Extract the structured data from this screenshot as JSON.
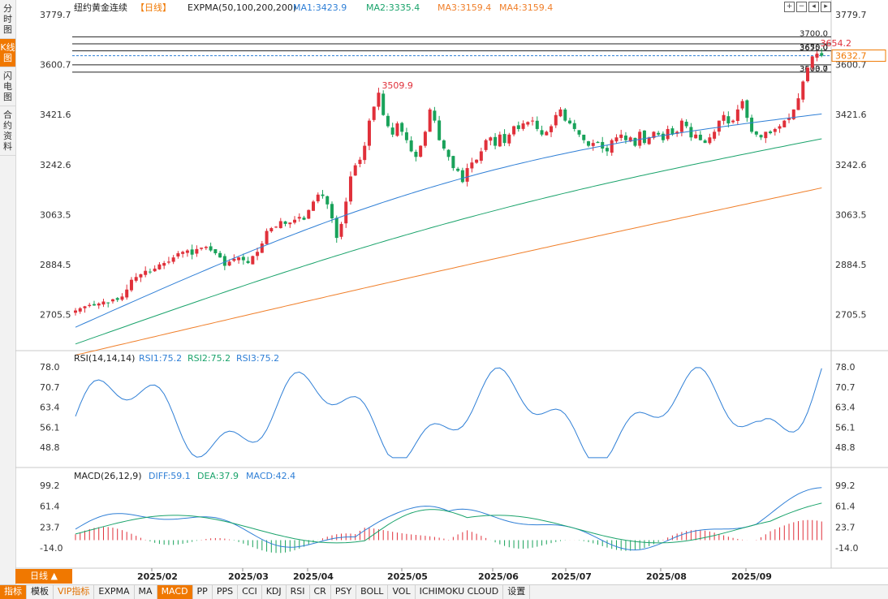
{
  "left_tabs": [
    "分时图",
    "K线图",
    "闪电图",
    "合约资料"
  ],
  "active_left_tab": 1,
  "header": {
    "symbol": "纽约黄金连续",
    "period": "【日线】",
    "indicator": "EXPMA(50,100,200,200)",
    "ma1": "MA1:3423.9",
    "ma2": "MA2:3335.4",
    "ma3": "MA3:3159.4",
    "ma4": "MA4:3159.4"
  },
  "colors": {
    "up": "#e0303a",
    "down": "#19a25a",
    "ma1": "#2f7fd6",
    "ma2": "#1aa36b",
    "ma3": "#f07f2a",
    "dea": "#1aa36b",
    "diff": "#2f7fd6",
    "label_red": "#e0303a",
    "accent": "#f07800"
  },
  "price_axis": {
    "ticks": [
      "3779.7",
      "3600.7",
      "3421.6",
      "3242.6",
      "3063.5",
      "2884.5",
      "2705.5"
    ],
    "range": [
      2600,
      3779.7
    ]
  },
  "hlines": [
    {
      "label": "3700.0",
      "value": 3700.0
    },
    {
      "label": "3675.0",
      "value": 3675.0
    },
    {
      "label": "3650.0",
      "value": 3650.0
    },
    {
      "label": "3600.0",
      "value": 3600.0
    },
    {
      "label": "3573.7",
      "value": 3573.7
    }
  ],
  "current_price": "3632.7",
  "current_price_value": 3632.7,
  "high_label": "3654.2",
  "peak_label": "3509.9",
  "x_axis_labels": [
    "2025/02",
    "2025/03",
    "2025/04",
    "2025/05",
    "2025/06",
    "2025/07",
    "2025/08",
    "2025/09"
  ],
  "rsi": {
    "header": "RSI(14,14,14)",
    "rsi1": "RSI1:75.2",
    "rsi2": "RSI2:75.2",
    "rsi3": "RSI3:75.2",
    "ticks": [
      "78.0",
      "70.7",
      "63.4",
      "56.1",
      "48.8"
    ]
  },
  "macd": {
    "header": "MACD(26,12,9)",
    "diff": "DIFF:59.1",
    "dea": "DEA:37.9",
    "macd": "MACD:42.4",
    "ticks": [
      "99.2",
      "61.4",
      "23.7",
      "-14.0"
    ]
  },
  "period_button": "日线 ▲",
  "bottom_tabs": [
    "指标",
    "模板",
    "VIP指标",
    "EXPMA",
    "MA",
    "MACD",
    "PP",
    "PPS",
    "CCI",
    "KDJ",
    "RSI",
    "CR",
    "PSY",
    "BOLL",
    "VOL",
    "ICHIMOKU CLOUD",
    "设置"
  ],
  "chart_data": {
    "type": "candlestick",
    "title": "纽约黄金连续 日线",
    "candles_close_approx": [
      2720,
      2728,
      2735,
      2740,
      2738,
      2745,
      2752,
      2748,
      2760,
      2758,
      2770,
      2795,
      2830,
      2840,
      2850,
      2862,
      2858,
      2870,
      2885,
      2890,
      2895,
      2910,
      2925,
      2930,
      2935,
      2920,
      2940,
      2945,
      2948,
      2935,
      2925,
      2910,
      2880,
      2895,
      2905,
      2910,
      2900,
      2890,
      2915,
      2930,
      2960,
      3005,
      3015,
      3020,
      3040,
      3030,
      3035,
      3045,
      3055,
      3045,
      3080,
      3110,
      3135,
      3130,
      3100,
      3050,
      2980,
      3030,
      3110,
      3200,
      3240,
      3260,
      3310,
      3400,
      3450,
      3500,
      3420,
      3380,
      3350,
      3390,
      3360,
      3330,
      3290,
      3270,
      3310,
      3360,
      3440,
      3400,
      3330,
      3300,
      3270,
      3230,
      3220,
      3180,
      3230,
      3250,
      3260,
      3290,
      3330,
      3340,
      3310,
      3350,
      3320,
      3350,
      3380,
      3370,
      3390,
      3395,
      3400,
      3370,
      3350,
      3360,
      3380,
      3420,
      3440,
      3400,
      3390,
      3370,
      3350,
      3330,
      3310,
      3320,
      3320,
      3300,
      3290,
      3330,
      3340,
      3350,
      3330,
      3340,
      3310,
      3360,
      3320,
      3340,
      3360,
      3350,
      3330,
      3370,
      3350,
      3360,
      3400,
      3380,
      3340,
      3350,
      3330,
      3320,
      3340,
      3360,
      3400,
      3420,
      3390,
      3400,
      3440,
      3470,
      3410,
      3360,
      3350,
      3340,
      3360,
      3355,
      3370,
      3380,
      3400,
      3410,
      3440,
      3480,
      3540,
      3590,
      3630,
      3640,
      3632.7
    ],
    "ma1_start_end": [
      2660,
      3424
    ],
    "ma2_start_end": [
      2600,
      3335
    ],
    "ma3_start_end": [
      2560,
      3159
    ],
    "ylim": [
      2600,
      3779.7
    ]
  }
}
